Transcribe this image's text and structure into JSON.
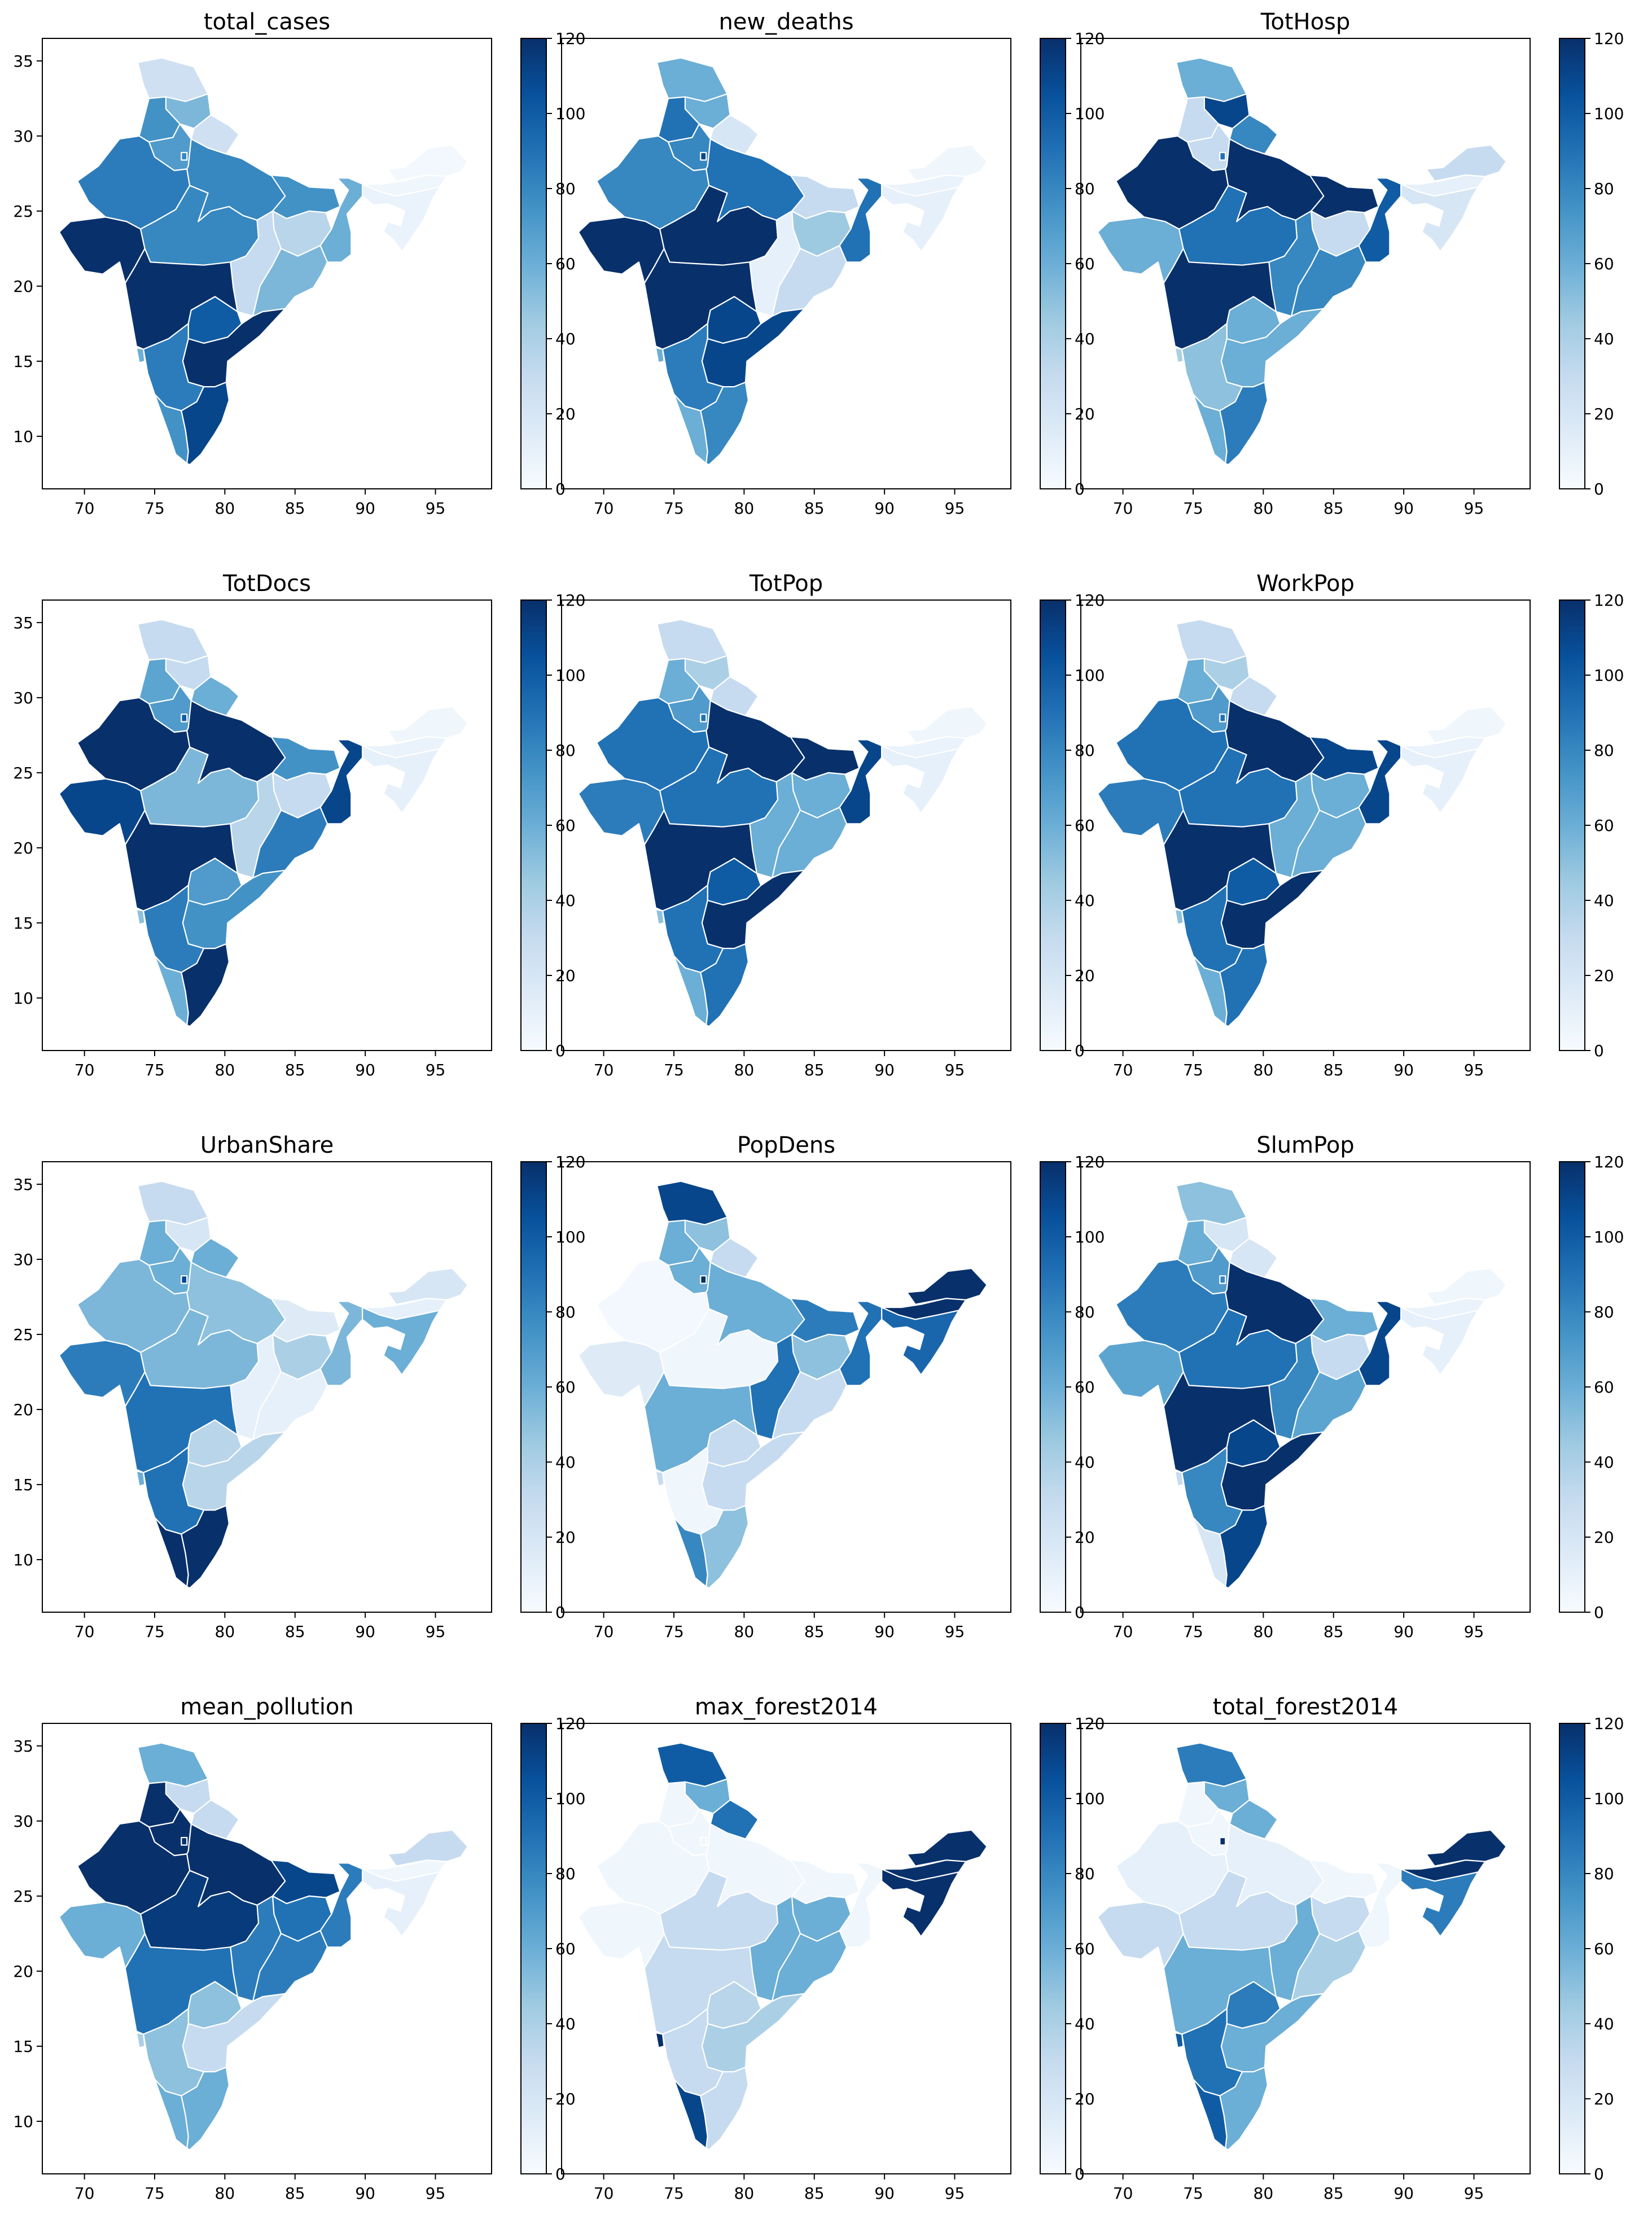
{
  "figure": {
    "colormap": "Blues",
    "colormap_stops": [
      "#f7fbff",
      "#deebf7",
      "#c6dbef",
      "#9ecae1",
      "#6baed6",
      "#4292c6",
      "#2171b5",
      "#08519c",
      "#08306b"
    ],
    "map_border_color": "#ffffff"
  },
  "chart_data": [
    {
      "type": "heatmap",
      "title": "total_cases",
      "xticks": [
        "70",
        "75",
        "80",
        "85",
        "90",
        "95"
      ],
      "yticks": [
        "35",
        "30",
        "25",
        "20",
        "15",
        "10"
      ],
      "xlim": [
        67,
        99
      ],
      "ylim": [
        6.5,
        36.5
      ],
      "colorbar": {
        "ticks": [
          "0",
          "20",
          "40",
          "60",
          "80",
          "100",
          "120"
        ],
        "lim": [
          0,
          120
        ]
      },
      "region_values": {
        "JK": 25,
        "HP": 55,
        "PB": 75,
        "UK": 25,
        "HR": 70,
        "DL": 80,
        "RJ": 85,
        "UP": 80,
        "GJ": 120,
        "MP": 80,
        "BR": 75,
        "JH": 35,
        "WB": 60,
        "CG": 30,
        "OD": 55,
        "MH": 120,
        "TG": 100,
        "AP": 120,
        "KA": 85,
        "GA": 60,
        "KL": 75,
        "TN": 110,
        "NE": 8,
        "AS": 5,
        "AR": 3
      }
    },
    {
      "type": "heatmap",
      "title": "new_deaths",
      "xticks": [
        "70",
        "75",
        "80",
        "85",
        "90",
        "95"
      ],
      "yticks": [],
      "xlim": [
        67,
        99
      ],
      "ylim": [
        6.5,
        36.5
      ],
      "colorbar": {
        "ticks": [
          "0",
          "20",
          "40",
          "60",
          "80",
          "100",
          "120"
        ],
        "lim": [
          0,
          120
        ]
      },
      "region_values": {
        "JK": 60,
        "HP": 60,
        "PB": 90,
        "UK": 20,
        "HR": 80,
        "DL": 110,
        "RJ": 80,
        "UP": 90,
        "GJ": 120,
        "MP": 120,
        "BR": 30,
        "JH": 45,
        "WB": 90,
        "CG": 10,
        "OD": 30,
        "MH": 120,
        "TG": 110,
        "AP": 110,
        "KA": 85,
        "GA": 60,
        "KL": 60,
        "TN": 80,
        "NE": 10,
        "AS": 8,
        "AR": 5
      }
    },
    {
      "type": "heatmap",
      "title": "TotHosp",
      "xticks": [
        "70",
        "75",
        "80",
        "85",
        "90",
        "95"
      ],
      "yticks": [],
      "xlim": [
        67,
        99
      ],
      "ylim": [
        6.5,
        36.5
      ],
      "colorbar": {
        "ticks": [
          "0",
          "20",
          "40",
          "60",
          "80",
          "100",
          "120"
        ],
        "lim": [
          0,
          120
        ]
      },
      "region_values": {
        "JK": 60,
        "HP": 110,
        "PB": 30,
        "UK": 80,
        "HR": 30,
        "DL": 90,
        "RJ": 120,
        "UP": 120,
        "GJ": 60,
        "MP": 90,
        "BR": 120,
        "JH": 30,
        "WB": 100,
        "CG": 80,
        "OD": 80,
        "MH": 120,
        "TG": 60,
        "AP": 60,
        "KA": 50,
        "GA": 40,
        "KL": 60,
        "TN": 85,
        "NE": 20,
        "AS": 10,
        "AR": 30
      }
    },
    {
      "type": "heatmap",
      "title": "TotDocs",
      "xticks": [
        "70",
        "75",
        "80",
        "85",
        "90",
        "95"
      ],
      "yticks": [
        "35",
        "30",
        "25",
        "20",
        "15",
        "10"
      ],
      "xlim": [
        67,
        99
      ],
      "ylim": [
        6.5,
        36.5
      ],
      "colorbar": {
        "ticks": [
          "0",
          "20",
          "40",
          "60",
          "80",
          "100",
          "120"
        ],
        "lim": [
          0,
          120
        ]
      },
      "region_values": {
        "JK": 30,
        "HP": 30,
        "PB": 65,
        "UK": 60,
        "HR": 70,
        "DL": 100,
        "RJ": 120,
        "UP": 120,
        "GJ": 110,
        "MP": 55,
        "BR": 75,
        "JH": 30,
        "WB": 110,
        "CG": 35,
        "OD": 85,
        "MH": 120,
        "TG": 70,
        "AP": 75,
        "KA": 85,
        "GA": 50,
        "KL": 60,
        "TN": 120,
        "NE": 10,
        "AS": 8,
        "AR": 5
      }
    },
    {
      "type": "heatmap",
      "title": "TotPop",
      "xticks": [
        "70",
        "75",
        "80",
        "85",
        "90",
        "95"
      ],
      "yticks": [],
      "xlim": [
        67,
        99
      ],
      "ylim": [
        6.5,
        36.5
      ],
      "colorbar": {
        "ticks": [
          "0",
          "20",
          "40",
          "60",
          "80",
          "100",
          "120"
        ],
        "lim": [
          0,
          120
        ]
      },
      "region_values": {
        "JK": 30,
        "HP": 40,
        "PB": 60,
        "UK": 30,
        "HR": 70,
        "DL": 90,
        "RJ": 90,
        "UP": 120,
        "GJ": 85,
        "MP": 90,
        "BR": 120,
        "JH": 60,
        "WB": 110,
        "CG": 60,
        "OD": 60,
        "MH": 120,
        "TG": 100,
        "AP": 120,
        "KA": 90,
        "GA": 50,
        "KL": 60,
        "TN": 90,
        "NE": 10,
        "AS": 8,
        "AR": 5
      }
    },
    {
      "type": "heatmap",
      "title": "WorkPop",
      "xticks": [
        "70",
        "75",
        "80",
        "85",
        "90",
        "95"
      ],
      "yticks": [],
      "xlim": [
        67,
        99
      ],
      "ylim": [
        6.5,
        36.5
      ],
      "colorbar": {
        "ticks": [
          "0",
          "20",
          "40",
          "60",
          "80",
          "100",
          "120"
        ],
        "lim": [
          0,
          120
        ]
      },
      "region_values": {
        "JK": 30,
        "HP": 40,
        "PB": 60,
        "UK": 30,
        "HR": 70,
        "DL": 90,
        "RJ": 90,
        "UP": 120,
        "GJ": 85,
        "MP": 90,
        "BR": 110,
        "JH": 60,
        "WB": 110,
        "CG": 60,
        "OD": 60,
        "MH": 120,
        "TG": 100,
        "AP": 120,
        "KA": 90,
        "GA": 50,
        "KL": 60,
        "TN": 90,
        "NE": 10,
        "AS": 8,
        "AR": 5
      }
    },
    {
      "type": "heatmap",
      "title": "UrbanShare",
      "xticks": [
        "70",
        "75",
        "80",
        "85",
        "90",
        "95"
      ],
      "yticks": [
        "35",
        "30",
        "25",
        "20",
        "15",
        "10"
      ],
      "xlim": [
        67,
        99
      ],
      "ylim": [
        6.5,
        36.5
      ],
      "colorbar": {
        "ticks": [
          "0",
          "20",
          "40",
          "60",
          "80",
          "100",
          "120"
        ],
        "lim": [
          0,
          120
        ]
      },
      "region_values": {
        "JK": 30,
        "HP": 20,
        "PB": 60,
        "UK": 60,
        "HR": 60,
        "DL": 110,
        "RJ": 55,
        "UP": 50,
        "GJ": 85,
        "MP": 55,
        "BR": 15,
        "JH": 40,
        "WB": 55,
        "CG": 10,
        "OD": 10,
        "MH": 90,
        "TG": 35,
        "AP": 35,
        "KA": 90,
        "GA": 60,
        "KL": 120,
        "TN": 120,
        "NE": 60,
        "AS": 10,
        "AR": 20
      }
    },
    {
      "type": "heatmap",
      "title": "PopDens",
      "xticks": [
        "70",
        "75",
        "80",
        "85",
        "90",
        "95"
      ],
      "yticks": [],
      "xlim": [
        67,
        99
      ],
      "ylim": [
        6.5,
        36.5
      ],
      "colorbar": {
        "ticks": [
          "0",
          "20",
          "40",
          "60",
          "80",
          "100",
          "120"
        ],
        "lim": [
          0,
          120
        ]
      },
      "region_values": {
        "JK": 110,
        "HP": 50,
        "PB": 60,
        "UK": 30,
        "HR": 60,
        "DL": 120,
        "RJ": 3,
        "UP": 60,
        "GJ": 15,
        "MP": 5,
        "BR": 85,
        "JH": 50,
        "WB": 90,
        "CG": 90,
        "OD": 30,
        "MH": 60,
        "TG": 30,
        "AP": 30,
        "KA": 5,
        "GA": 30,
        "KL": 80,
        "TN": 50,
        "NE": 95,
        "AS": 120,
        "AR": 120
      }
    },
    {
      "type": "heatmap",
      "title": "SlumPop",
      "xticks": [
        "70",
        "75",
        "80",
        "85",
        "90",
        "95"
      ],
      "yticks": [],
      "xlim": [
        67,
        99
      ],
      "ylim": [
        6.5,
        36.5
      ],
      "colorbar": {
        "ticks": [
          "0",
          "20",
          "40",
          "60",
          "80",
          "100",
          "120"
        ],
        "lim": [
          0,
          120
        ]
      },
      "region_values": {
        "JK": 50,
        "HP": 20,
        "PB": 60,
        "UK": 20,
        "HR": 70,
        "DL": 80,
        "RJ": 85,
        "UP": 120,
        "GJ": 65,
        "MP": 90,
        "BR": 60,
        "JH": 30,
        "WB": 110,
        "CG": 80,
        "OD": 65,
        "MH": 120,
        "TG": 110,
        "AP": 120,
        "KA": 80,
        "GA": 30,
        "KL": 20,
        "TN": 110,
        "NE": 10,
        "AS": 8,
        "AR": 5
      }
    },
    {
      "type": "heatmap",
      "title": "mean_pollution",
      "xticks": [
        "70",
        "75",
        "80",
        "85",
        "90",
        "95"
      ],
      "yticks": [
        "35",
        "30",
        "25",
        "20",
        "15",
        "10"
      ],
      "xlim": [
        67,
        99
      ],
      "ylim": [
        6.5,
        36.5
      ],
      "colorbar": {
        "ticks": [
          "0",
          "20",
          "40",
          "60",
          "80",
          "100",
          "120"
        ],
        "lim": [
          0,
          120
        ]
      },
      "region_values": {
        "JK": 60,
        "HP": 30,
        "PB": 120,
        "UK": 30,
        "HR": 120,
        "DL": 120,
        "RJ": 120,
        "UP": 120,
        "GJ": 60,
        "MP": 115,
        "BR": 110,
        "JH": 90,
        "WB": 85,
        "CG": 85,
        "OD": 85,
        "MH": 90,
        "TG": 50,
        "AP": 30,
        "KA": 50,
        "GA": 40,
        "KL": 60,
        "TN": 60,
        "NE": 10,
        "AS": 5,
        "AR": 30
      }
    },
    {
      "type": "heatmap",
      "title": "max_forest2014",
      "xticks": [
        "70",
        "75",
        "80",
        "85",
        "90",
        "95"
      ],
      "yticks": [],
      "xlim": [
        67,
        99
      ],
      "ylim": [
        6.5,
        36.5
      ],
      "colorbar": {
        "ticks": [
          "0",
          "20",
          "40",
          "60",
          "80",
          "100",
          "120"
        ],
        "lim": [
          0,
          120
        ]
      },
      "region_values": {
        "JK": 100,
        "HP": 60,
        "PB": 5,
        "UK": 90,
        "HR": 5,
        "DL": 5,
        "RJ": 5,
        "UP": 5,
        "GJ": 5,
        "MP": 30,
        "BR": 5,
        "JH": 60,
        "WB": 5,
        "CG": 60,
        "OD": 60,
        "MH": 30,
        "TG": 35,
        "AP": 40,
        "KA": 30,
        "GA": 120,
        "KL": 110,
        "TN": 30,
        "NE": 120,
        "AS": 120,
        "AR": 120
      }
    },
    {
      "type": "heatmap",
      "title": "total_forest2014",
      "xticks": [
        "70",
        "75",
        "80",
        "85",
        "90",
        "95"
      ],
      "yticks": [],
      "xlim": [
        67,
        99
      ],
      "ylim": [
        6.5,
        36.5
      ],
      "colorbar": {
        "ticks": [
          "0",
          "20",
          "40",
          "60",
          "80",
          "100",
          "120"
        ],
        "lim": [
          0,
          120
        ]
      },
      "region_values": {
        "JK": 85,
        "HP": 60,
        "PB": 5,
        "UK": 60,
        "HR": 5,
        "DL": 120,
        "RJ": 10,
        "UP": 10,
        "GJ": 30,
        "MP": 30,
        "BR": 5,
        "JH": 30,
        "WB": 5,
        "CG": 60,
        "OD": 40,
        "MH": 60,
        "TG": 85,
        "AP": 60,
        "KA": 90,
        "GA": 100,
        "KL": 100,
        "TN": 60,
        "NE": 85,
        "AS": 120,
        "AR": 120
      }
    }
  ]
}
